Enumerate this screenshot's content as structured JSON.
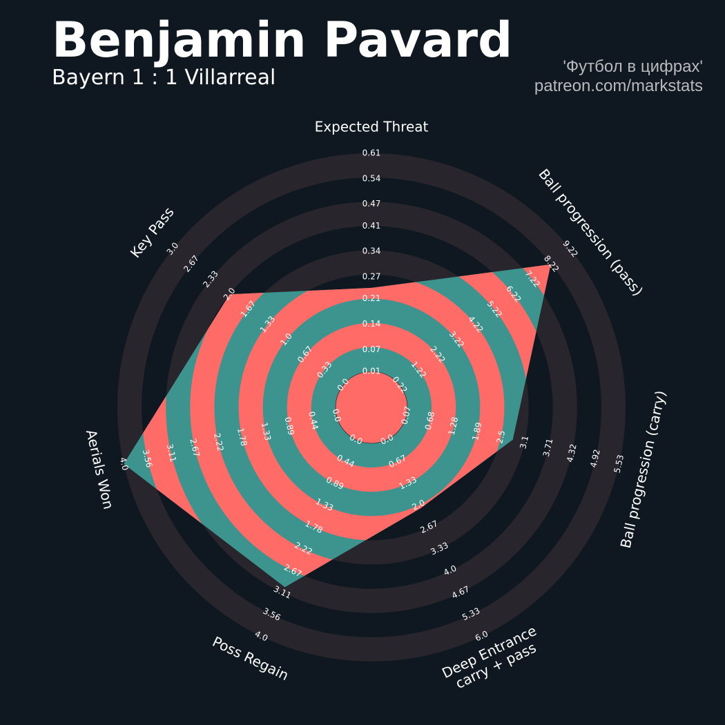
{
  "header": {
    "title": "Benjamin Pavard",
    "subtitle": "Bayern 1 : 1 Villarreal",
    "credit_1": "'Футбол в цифрах'",
    "credit_2": "patreon.com/markstats"
  },
  "chart_data": {
    "type": "radar",
    "params": [
      "Expected Threat",
      "Ball progression (pass)",
      "Ball progression (carry)",
      "Deep Entrance\ncarry + pass",
      "Poss Regain",
      "Aerials Won",
      "Key Pass"
    ],
    "ticks": [
      [
        0.01,
        0.07,
        0.14,
        0.21,
        0.27,
        0.34,
        0.41,
        0.47,
        0.54,
        0.61
      ],
      [
        0.22,
        1.22,
        2.22,
        3.22,
        4.22,
        5.22,
        6.22,
        7.22,
        8.22,
        9.22
      ],
      [
        0.07,
        0.68,
        1.28,
        1.89,
        2.5,
        3.1,
        3.71,
        4.32,
        4.92,
        5.53
      ],
      [
        {
          "value": 0,
          "label": "0.0"
        },
        0.67,
        1.33,
        {
          "value": 2,
          "label": "2.0"
        },
        2.67,
        3.33,
        {
          "value": 4,
          "label": "4.0"
        },
        4.67,
        5.33,
        {
          "value": 6,
          "label": "6.0"
        }
      ],
      [
        {
          "value": 0,
          "label": "0.0"
        },
        0.44,
        0.89,
        1.33,
        1.78,
        2.22,
        2.67,
        3.11,
        3.56,
        {
          "value": 4,
          "label": "4.0"
        }
      ],
      [
        {
          "value": 0,
          "label": "0.0"
        },
        0.44,
        0.89,
        1.33,
        1.78,
        2.22,
        2.67,
        3.11,
        3.56,
        {
          "value": 4,
          "label": "4.0"
        }
      ],
      [
        {
          "value": 0,
          "label": "0.0"
        },
        0.33,
        0.67,
        {
          "value": 1,
          "label": "1.0"
        },
        1.33,
        1.67,
        {
          "value": 2,
          "label": "2.0"
        },
        2.33,
        2.67,
        {
          "value": 3,
          "label": "3.0"
        }
      ]
    ],
    "values": [
      0.24,
      8.2,
      2.8,
      2.1,
      3.0,
      4.0,
      2.0
    ],
    "color": "#3d948e",
    "ring_color": "#ff6b66",
    "circle_color": "#28252c"
  }
}
